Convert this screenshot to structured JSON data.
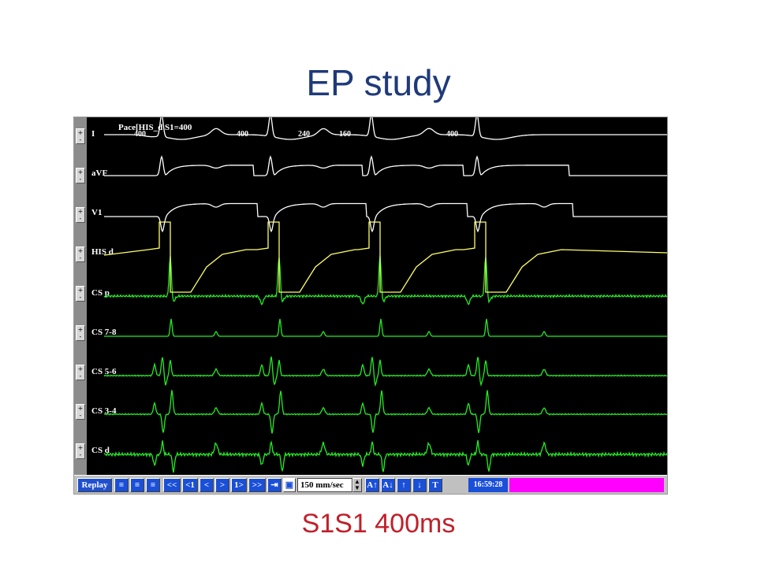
{
  "slide": {
    "title": "EP study",
    "caption": "S1S1 400ms"
  },
  "recorder": {
    "header_label": "Pace[HIS_d S1=400",
    "interval_markers": [
      "400",
      "400",
      "240",
      "160",
      "400"
    ],
    "channels": [
      {
        "label": "I",
        "color": "#ffffff"
      },
      {
        "label": "aVF",
        "color": "#ffffff"
      },
      {
        "label": "V1",
        "color": "#ffffff"
      },
      {
        "label": "HIS d",
        "color": "#ffff66"
      },
      {
        "label": "CS p",
        "color": "#22ee22"
      },
      {
        "label": "CS 7-8",
        "color": "#22ee22"
      },
      {
        "label": "CS 5-6",
        "color": "#22ee22"
      },
      {
        "label": "CS 3-4",
        "color": "#22ee22"
      },
      {
        "label": "CS d",
        "color": "#22ee22"
      }
    ],
    "toolbar": {
      "replay_label": "Replay",
      "page_buttons": [
        "<<",
        "<1",
        "<",
        ">",
        "1>",
        ">>"
      ],
      "speed_value": "150 mm/sec",
      "time": "16:59:28",
      "t_label": "T"
    },
    "colors": {
      "background": "#000000",
      "surface_ecg": "#ffffff",
      "his": "#ffff66",
      "cs": "#22ee22",
      "toolbar_blue": "#1a4fd8",
      "status_bar": "#ff00ff"
    }
  }
}
